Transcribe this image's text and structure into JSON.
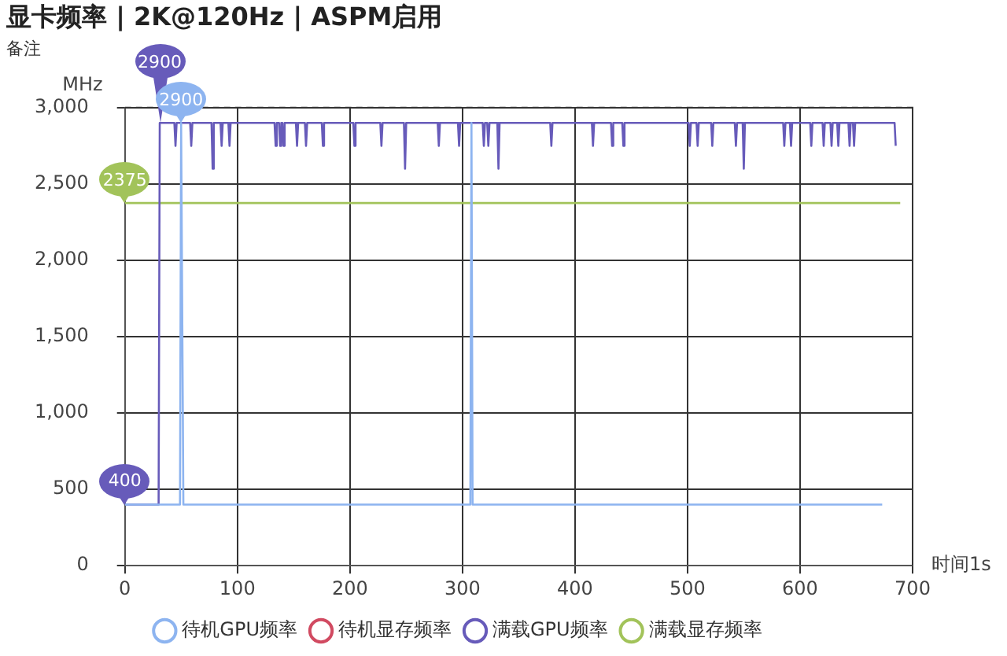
{
  "chart_data": {
    "type": "line",
    "title": "显卡频率 | 2K@120Hz | ASPM启用",
    "subtitle": "备注",
    "xlabel": "时间1s",
    "ylabel": "MHz",
    "xlim": [
      0,
      700
    ],
    "xticks": [
      0,
      100,
      200,
      300,
      400,
      500,
      600,
      700
    ],
    "ylim": [
      0,
      3000
    ],
    "yticks": [
      0,
      {
        "value": 500,
        "label": "500"
      },
      {
        "value": 1000,
        "label": "1,000"
      },
      {
        "value": 1500,
        "label": "1,500"
      },
      {
        "value": 2000,
        "label": "2,000"
      },
      {
        "value": 2500,
        "label": "2,500"
      },
      {
        "value": 3000,
        "label": "3,000"
      }
    ],
    "grid": true,
    "legend": "bottom",
    "marker": "none",
    "line_style": "solid",
    "series": [
      {
        "name": "待机GPU频率",
        "color": "#8db4f0",
        "x": [
          0,
          49,
          50,
          51,
          52,
          307,
          308,
          309,
          673
        ],
        "values": [
          400,
          400,
          2900,
          2900,
          400,
          400,
          2900,
          400,
          400
        ]
      },
      {
        "name": "待机显存频率",
        "color": "#d14a61"
      },
      {
        "name": "满载GPU频率",
        "color": "#675bba",
        "x": [
          0,
          30,
          31,
          44,
          45,
          46,
          58,
          59,
          60,
          77,
          78,
          79,
          85,
          86,
          87,
          92,
          93,
          94,
          133,
          134,
          135,
          137,
          138,
          139,
          140,
          141,
          142,
          152,
          153,
          154,
          160,
          161,
          162,
          175,
          176,
          177,
          203,
          204,
          205,
          227,
          228,
          229,
          248,
          249,
          250,
          278,
          279,
          280,
          296,
          297,
          298,
          318,
          319,
          320,
          322,
          323,
          324,
          331,
          332,
          333,
          378,
          379,
          380,
          415,
          416,
          417,
          432,
          433,
          434,
          442,
          443,
          444,
          501,
          502,
          503,
          508,
          509,
          510,
          521,
          522,
          523,
          542,
          543,
          544,
          549,
          550,
          551,
          585,
          586,
          587,
          591,
          592,
          593,
          609,
          610,
          611,
          620,
          621,
          622,
          627,
          628,
          629,
          633,
          634,
          635,
          643,
          644,
          645,
          647,
          648,
          649,
          684,
          685
        ],
        "values": [
          400,
          400,
          2900,
          2900,
          2750,
          2900,
          2900,
          2750,
          2900,
          2900,
          2600,
          2900,
          2900,
          2750,
          2900,
          2900,
          2750,
          2900,
          2900,
          2750,
          2900,
          2900,
          2750,
          2900,
          2900,
          2750,
          2900,
          2900,
          2750,
          2900,
          2900,
          2750,
          2900,
          2900,
          2750,
          2900,
          2900,
          2750,
          2900,
          2900,
          2750,
          2900,
          2900,
          2600,
          2900,
          2900,
          2750,
          2900,
          2900,
          2750,
          2900,
          2900,
          2750,
          2900,
          2900,
          2750,
          2900,
          2900,
          2600,
          2900,
          2900,
          2750,
          2900,
          2900,
          2750,
          2900,
          2900,
          2750,
          2900,
          2900,
          2750,
          2900,
          2900,
          2750,
          2900,
          2900,
          2750,
          2900,
          2900,
          2750,
          2900,
          2900,
          2750,
          2900,
          2900,
          2600,
          2900,
          2900,
          2750,
          2900,
          2900,
          2750,
          2900,
          2900,
          2750,
          2900,
          2900,
          2750,
          2900,
          2900,
          2750,
          2900,
          2900,
          2750,
          2900,
          2900,
          2750,
          2900,
          2900,
          2750,
          2900,
          2900,
          2750
        ]
      },
      {
        "name": "满载显存频率",
        "color": "#a2c35a",
        "x": [
          0,
          689
        ],
        "values": [
          2375,
          2375
        ]
      }
    ],
    "annotations": [
      {
        "text": "2900",
        "x": 50,
        "y": 2900
      },
      {
        "text": "2900",
        "x": 31,
        "y": 2900
      },
      {
        "text": "2375",
        "x": 0,
        "y": 2375
      },
      {
        "text": "400",
        "x": 0,
        "y": 400
      }
    ]
  }
}
